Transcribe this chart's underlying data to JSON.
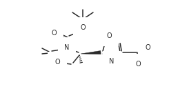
{
  "bg_color": "#ffffff",
  "line_color": "#2a2a2a",
  "line_width": 1.1,
  "font_size": 7.0,
  "figsize": [
    2.45,
    1.58
  ],
  "dpi": 100,
  "xlim": [
    0,
    245
  ],
  "ylim": [
    0,
    158
  ]
}
